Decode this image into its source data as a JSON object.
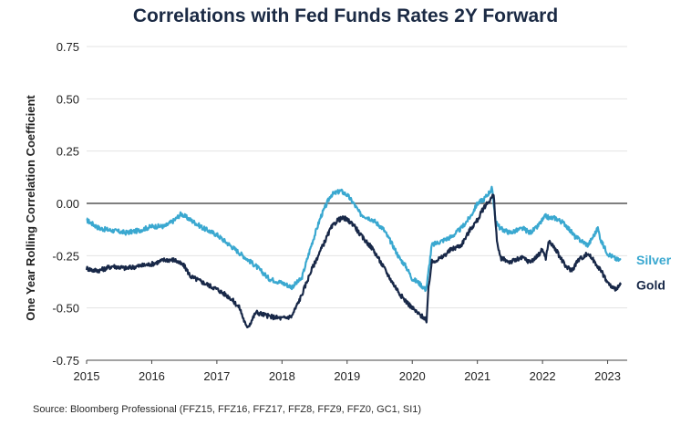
{
  "chart_data": {
    "type": "line",
    "title": "Correlations with Fed Funds Rates 2Y Forward",
    "xlabel": "",
    "ylabel": "One Year Rolling Correlation Coefficient",
    "xlim": [
      2015,
      2023.3
    ],
    "ylim": [
      -0.75,
      0.75
    ],
    "xticks": [
      "2015",
      "2016",
      "2017",
      "2018",
      "2019",
      "2020",
      "2021",
      "2022",
      "2023"
    ],
    "yticks": [
      "0.75",
      "0.50",
      "0.25",
      "0.00",
      "-0.25",
      "-0.50",
      "-0.75"
    ],
    "source": "Source: Bloomberg Professional (FFZ15, FFZ16, FFZ17, FFZ8, FFZ9, FFZ0, GC1, SI1)",
    "series": [
      {
        "name": "Silver",
        "color": "#3aa8d0",
        "x": [
          2015.0,
          2015.1,
          2015.2,
          2015.4,
          2015.6,
          2015.8,
          2016.0,
          2016.2,
          2016.35,
          2016.45,
          2016.6,
          2016.8,
          2017.0,
          2017.2,
          2017.4,
          2017.6,
          2017.8,
          2018.0,
          2018.15,
          2018.3,
          2018.45,
          2018.6,
          2018.75,
          2018.9,
          2019.0,
          2019.1,
          2019.2,
          2019.4,
          2019.55,
          2019.7,
          2019.8,
          2019.9,
          2020.0,
          2020.1,
          2020.2,
          2020.22,
          2020.3,
          2020.45,
          2020.6,
          2020.75,
          2020.9,
          2021.0,
          2021.1,
          2021.2,
          2021.22,
          2021.28,
          2021.35,
          2021.5,
          2021.7,
          2021.8,
          2021.9,
          2022.0,
          2022.05,
          2022.1,
          2022.2,
          2022.35,
          2022.5,
          2022.6,
          2022.7,
          2022.85,
          2022.9,
          2023.0,
          2023.15,
          2023.2
        ],
        "y": [
          -0.08,
          -0.1,
          -0.12,
          -0.13,
          -0.14,
          -0.13,
          -0.11,
          -0.11,
          -0.08,
          -0.05,
          -0.08,
          -0.12,
          -0.15,
          -0.2,
          -0.25,
          -0.3,
          -0.36,
          -0.38,
          -0.4,
          -0.36,
          -0.2,
          -0.06,
          0.04,
          0.06,
          0.04,
          0.0,
          -0.05,
          -0.08,
          -0.12,
          -0.2,
          -0.26,
          -0.3,
          -0.36,
          -0.38,
          -0.41,
          -0.4,
          -0.2,
          -0.18,
          -0.16,
          -0.12,
          -0.06,
          0.0,
          0.02,
          0.06,
          0.08,
          -0.08,
          -0.12,
          -0.14,
          -0.12,
          -0.14,
          -0.12,
          -0.08,
          -0.06,
          -0.07,
          -0.07,
          -0.1,
          -0.16,
          -0.18,
          -0.2,
          -0.12,
          -0.18,
          -0.24,
          -0.27,
          -0.27
        ]
      },
      {
        "name": "Gold",
        "color": "#182848",
        "x": [
          2015.0,
          2015.1,
          2015.2,
          2015.4,
          2015.6,
          2015.8,
          2016.0,
          2016.2,
          2016.35,
          2016.5,
          2016.6,
          2016.8,
          2017.0,
          2017.2,
          2017.35,
          2017.45,
          2017.5,
          2017.6,
          2017.8,
          2018.0,
          2018.15,
          2018.3,
          2018.45,
          2018.6,
          2018.75,
          2018.85,
          2018.95,
          2019.1,
          2019.2,
          2019.4,
          2019.55,
          2019.7,
          2019.85,
          2020.0,
          2020.1,
          2020.2,
          2020.22,
          2020.25,
          2020.3,
          2020.45,
          2020.6,
          2020.75,
          2020.9,
          2021.0,
          2021.1,
          2021.2,
          2021.25,
          2021.3,
          2021.35,
          2021.5,
          2021.7,
          2021.8,
          2021.9,
          2022.0,
          2022.05,
          2022.1,
          2022.2,
          2022.35,
          2022.45,
          2022.55,
          2022.7,
          2022.85,
          2022.95,
          2023.0,
          2023.1,
          2023.2
        ],
        "y": [
          -0.31,
          -0.32,
          -0.32,
          -0.3,
          -0.31,
          -0.3,
          -0.29,
          -0.27,
          -0.27,
          -0.3,
          -0.35,
          -0.38,
          -0.41,
          -0.45,
          -0.5,
          -0.59,
          -0.58,
          -0.52,
          -0.54,
          -0.55,
          -0.54,
          -0.44,
          -0.32,
          -0.22,
          -0.12,
          -0.08,
          -0.07,
          -0.1,
          -0.15,
          -0.22,
          -0.3,
          -0.38,
          -0.45,
          -0.5,
          -0.53,
          -0.55,
          -0.57,
          -0.4,
          -0.28,
          -0.26,
          -0.22,
          -0.2,
          -0.12,
          -0.08,
          -0.02,
          0.02,
          0.04,
          -0.18,
          -0.26,
          -0.28,
          -0.26,
          -0.28,
          -0.26,
          -0.22,
          -0.26,
          -0.18,
          -0.22,
          -0.3,
          -0.32,
          -0.27,
          -0.24,
          -0.3,
          -0.35,
          -0.38,
          -0.41,
          -0.39
        ]
      }
    ]
  }
}
